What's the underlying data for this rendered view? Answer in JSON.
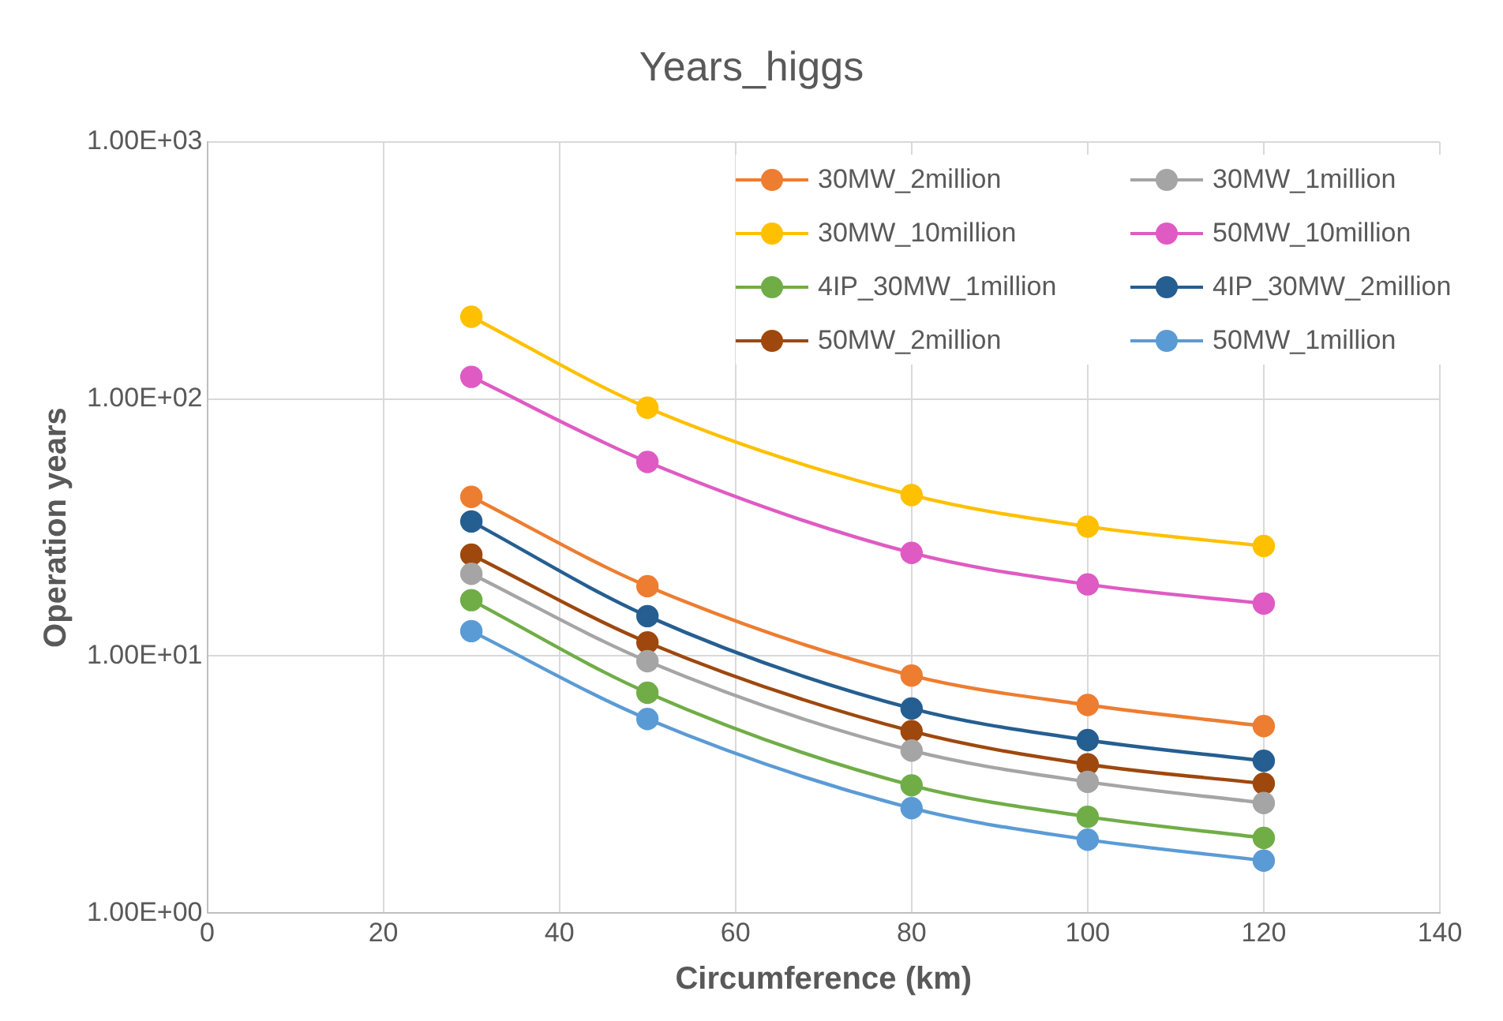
{
  "chart_data": {
    "type": "line",
    "title": "Years_higgs",
    "xlabel": "Circumference (km)",
    "ylabel": "Operation years",
    "log": "y",
    "grid": true,
    "legend": "top right",
    "marker": "circle",
    "line_style": "solid",
    "x": [
      30,
      50,
      80,
      100,
      120
    ],
    "xlim": [
      0,
      140
    ],
    "xticks": [
      0,
      20,
      40,
      60,
      80,
      100,
      120,
      140
    ],
    "ylim": [
      1,
      1000
    ],
    "yticks": [
      {
        "value": 1,
        "label": "1.00E+00"
      },
      {
        "value": 10,
        "label": "1.00E+01"
      },
      {
        "value": 100,
        "label": "1.00E+02"
      },
      {
        "value": 1000,
        "label": "1.00E+03"
      }
    ],
    "series": [
      {
        "name": "30MW_2million",
        "color": "#ed7d31",
        "values": [
          41.6,
          18.7,
          8.4,
          6.45,
          5.34
        ]
      },
      {
        "name": "30MW_1million",
        "color": "#a5a5a5",
        "values": [
          20.9,
          9.55,
          4.29,
          3.24,
          2.68
        ]
      },
      {
        "name": "30MW_10million",
        "color": "#ffc000",
        "values": [
          209,
          92.5,
          42.3,
          31.9,
          26.8
        ]
      },
      {
        "name": "50MW_10million",
        "color": "#df5bc3",
        "values": [
          122,
          56.9,
          25.2,
          19.0,
          16.0
        ]
      },
      {
        "name": "4IP_30MW_1million",
        "color": "#70ad47",
        "values": [
          16.5,
          7.2,
          3.14,
          2.37,
          1.96
        ]
      },
      {
        "name": "4IP_30MW_2million",
        "color": "#255e91",
        "values": [
          33.4,
          14.3,
          6.25,
          4.71,
          3.91
        ]
      },
      {
        "name": "50MW_2million",
        "color": "#9e480e",
        "values": [
          24.8,
          11.3,
          5.1,
          3.79,
          3.19
        ]
      },
      {
        "name": "50MW_1million",
        "color": "#5b9bd5",
        "values": [
          12.5,
          5.69,
          2.56,
          1.93,
          1.6
        ]
      }
    ]
  }
}
